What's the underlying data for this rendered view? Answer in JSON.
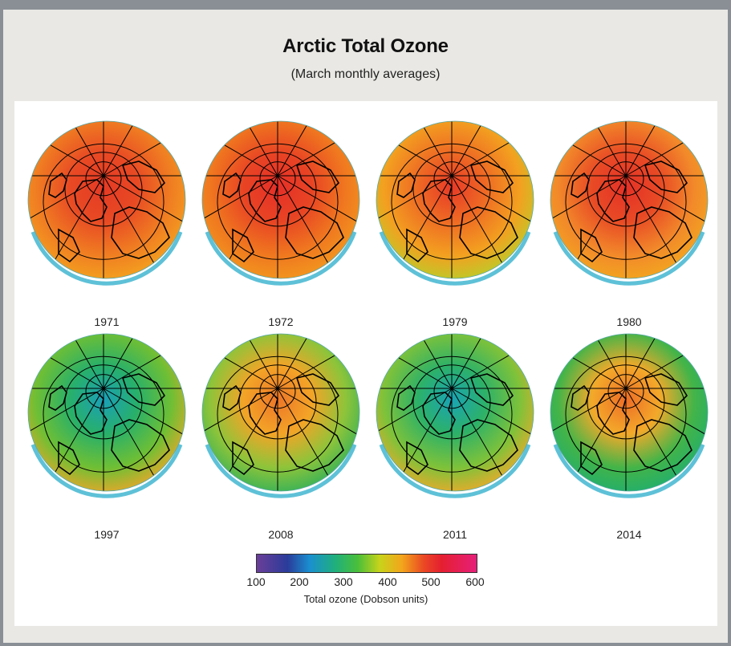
{
  "header": {
    "title": "Arctic Total Ozone",
    "subtitle": "(March monthly averages)"
  },
  "maps": [
    {
      "year": "1971",
      "palette": [
        "#e53a25",
        "#e84a24",
        "#f07e22",
        "#f4a51f"
      ]
    },
    {
      "year": "1972",
      "palette": [
        "#e62f28",
        "#e84424",
        "#f0781f",
        "#f29a1f"
      ]
    },
    {
      "year": "1979",
      "palette": [
        "#e83a27",
        "#ee6a24",
        "#f3a020",
        "#b7cf2a"
      ]
    },
    {
      "year": "1980",
      "palette": [
        "#e53127",
        "#e84a25",
        "#f2892a",
        "#f3a91f"
      ]
    },
    {
      "year": "1997",
      "palette": [
        "#1aa0b8",
        "#28b06a",
        "#6fbf34",
        "#f0a52a"
      ]
    },
    {
      "year": "2008",
      "palette": [
        "#ed7628",
        "#f3a427",
        "#8dc43a",
        "#2fb05a"
      ]
    },
    {
      "year": "2011",
      "palette": [
        "#19a4b5",
        "#2db168",
        "#7ec23a",
        "#f3a82a"
      ]
    },
    {
      "year": "2014",
      "palette": [
        "#ee6d26",
        "#f3a92a",
        "#43b448",
        "#1fae70"
      ]
    }
  ],
  "colorbar": {
    "ticks": [
      "100",
      "200",
      "300",
      "400",
      "500",
      "600"
    ],
    "label": "Total ozone (Dobson units)",
    "range": [
      100,
      600
    ]
  },
  "colors": {
    "background": "#8a8f96",
    "frame": "#e9e8e4",
    "panel": "#ffffff",
    "coastline": "#000000"
  }
}
